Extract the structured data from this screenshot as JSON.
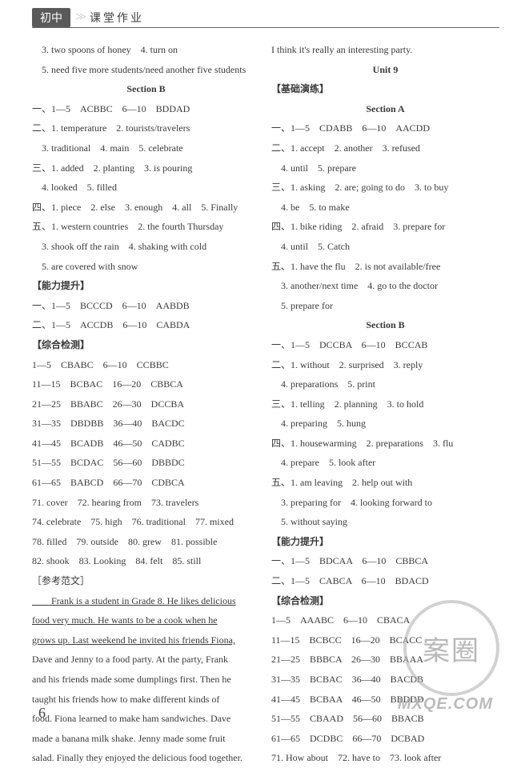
{
  "header": {
    "badge": "初中",
    "chev": ">>",
    "title": "课堂作业"
  },
  "page_number": "6",
  "watermark": {
    "circle": "案圈",
    "url": "MXQE.COM"
  },
  "left": [
    {
      "t": "line",
      "v": "　3. two spoons of honey　4. turn on"
    },
    {
      "t": "line",
      "v": "　5. need five more students/need another five students"
    },
    {
      "t": "center",
      "v": "Section B"
    },
    {
      "t": "line",
      "v": "一、1—5　ACBBC　6—10　BDDAD"
    },
    {
      "t": "line",
      "v": "二、1. temperature　2. tourists/travelers"
    },
    {
      "t": "line",
      "v": "　3. traditional　4. main　5. celebrate"
    },
    {
      "t": "line",
      "v": "三、1. added　2. planting　3. is pouring"
    },
    {
      "t": "line",
      "v": "　4. looked　5. filled"
    },
    {
      "t": "line",
      "v": "四、1. piece　2. else　3. enough　4. all　5. Finally"
    },
    {
      "t": "line",
      "v": "五、1. western countries　2. the fourth Thursday"
    },
    {
      "t": "line",
      "v": "　3. shook off the rain　4. shaking with cold"
    },
    {
      "t": "line",
      "v": "　5. are covered with snow"
    },
    {
      "t": "bold",
      "v": "【能力提升】"
    },
    {
      "t": "line",
      "v": "一、1—5　BCCCD　6—10　AABDB"
    },
    {
      "t": "line",
      "v": "二、1—5　ACCDB　6—10　CABDA"
    },
    {
      "t": "bold",
      "v": "【综合检测】"
    },
    {
      "t": "line",
      "v": "1—5　CBABC　6—10　CCBBC"
    },
    {
      "t": "line",
      "v": "11—15　BCBAC　16—20　CBBCA"
    },
    {
      "t": "line",
      "v": "21—25　BBABC　26—30　DCCBA"
    },
    {
      "t": "line",
      "v": "31—35　DBDBB　36—40　BACDC"
    },
    {
      "t": "line",
      "v": "41—45　BCADB　46—50　CADBC"
    },
    {
      "t": "line",
      "v": "51—55　BCDAC　56—60　DBBDC"
    },
    {
      "t": "line",
      "v": "61—65　BABCD　66—70　CDBCA"
    },
    {
      "t": "line",
      "v": "71. cover　72. hearing from　73. travelers"
    },
    {
      "t": "line",
      "v": "74. celebrate　75. high　76. traditional　77. mixed"
    },
    {
      "t": "line",
      "v": "78. filled　79. outside　80. grew　81. possible"
    },
    {
      "t": "line",
      "v": "82. shook　83. Looking　84. felt　85. still"
    },
    {
      "t": "line",
      "v": "［参考范文］"
    },
    {
      "t": "uline",
      "v": "　　Frank is a student in Grade 8. He likes delicious"
    },
    {
      "t": "uline",
      "v": "food very much. He wants to be a cook when he"
    },
    {
      "t": "uline",
      "v": "grows up. Last weekend he invited his friends Fiona,"
    },
    {
      "t": "line",
      "v": "Dave and Jenny to a food party. At the party, Frank"
    },
    {
      "t": "line",
      "v": "and his friends made some dumplings first. Then he"
    },
    {
      "t": "line",
      "v": "taught his friends how to make different kinds of"
    },
    {
      "t": "line",
      "v": "food. Fiona learned to make ham sandwiches. Dave"
    },
    {
      "t": "line",
      "v": "made a banana milk shake. Jenny made some fruit"
    },
    {
      "t": "line",
      "v": "salad. Finally they enjoyed the delicious food together."
    }
  ],
  "right": [
    {
      "t": "line",
      "v": "I think it's really an interesting party."
    },
    {
      "t": "center",
      "v": "Unit 9"
    },
    {
      "t": "bold",
      "v": "【基础演练】"
    },
    {
      "t": "center",
      "v": "Section A"
    },
    {
      "t": "line",
      "v": "一、1—5　CDABB　6—10　AACDD"
    },
    {
      "t": "line",
      "v": "二、1. accept　2. another　3. refused"
    },
    {
      "t": "line",
      "v": "　4. until　5. prepare"
    },
    {
      "t": "line",
      "v": "三、1. asking　2. are; going to do　3. to buy"
    },
    {
      "t": "line",
      "v": "　4. be　5. to make"
    },
    {
      "t": "line",
      "v": "四、1. bike riding　2. afraid　3. prepare for"
    },
    {
      "t": "line",
      "v": "　4. until　5. Catch"
    },
    {
      "t": "line",
      "v": "五、1. have the flu　2. is not available/free"
    },
    {
      "t": "line",
      "v": "　3. another/next time　4. go to the doctor"
    },
    {
      "t": "line",
      "v": "　5. prepare for"
    },
    {
      "t": "center",
      "v": "Section B"
    },
    {
      "t": "line",
      "v": "一、1—5　DCCBA　6—10　BCCAB"
    },
    {
      "t": "line",
      "v": "二、1. without　2. surprised　3. reply"
    },
    {
      "t": "line",
      "v": "　4. preparations　5. print"
    },
    {
      "t": "line",
      "v": "三、1. telling　2. planning　3. to hold"
    },
    {
      "t": "line",
      "v": "　4. preparing　5. hung"
    },
    {
      "t": "line",
      "v": "四、1. housewarming　2. preparations　3. flu"
    },
    {
      "t": "line",
      "v": "　4. prepare　5. look after"
    },
    {
      "t": "line",
      "v": "五、1. am leaving　2. help out with"
    },
    {
      "t": "line",
      "v": "　3. preparing for　4. looking forward to"
    },
    {
      "t": "line",
      "v": "　5. without saying"
    },
    {
      "t": "bold",
      "v": "【能力提升】"
    },
    {
      "t": "line",
      "v": "一、1—5　BDCAA　6—10　CBBCA"
    },
    {
      "t": "line",
      "v": "二、1—5　CABCA　6—10　BDACD"
    },
    {
      "t": "bold",
      "v": "【综合检测】"
    },
    {
      "t": "line",
      "v": "1—5　AAABC　6—10　CBACA"
    },
    {
      "t": "line",
      "v": "11—15　BCBCC　16—20　BCACC"
    },
    {
      "t": "line",
      "v": "21—25　BBBCA　26—30　BBAAA"
    },
    {
      "t": "line",
      "v": "31—35　BCBAC　36—40　BACDB"
    },
    {
      "t": "line",
      "v": "41—45　BCBAA　46—50　BBDDD"
    },
    {
      "t": "line",
      "v": "51—55　CBAAD　56—60　BBACB"
    },
    {
      "t": "line",
      "v": "61—65　DCDBC　66—70　DCBAD"
    },
    {
      "t": "line",
      "v": "71. How about　72. have to　73. look after"
    }
  ]
}
